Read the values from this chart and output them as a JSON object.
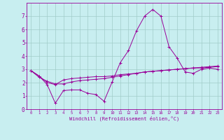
{
  "xlabel": "Windchill (Refroidissement éolien,°C)",
  "xlim": [
    -0.5,
    23.5
  ],
  "ylim": [
    0,
    8
  ],
  "yticks": [
    0,
    1,
    2,
    3,
    4,
    5,
    6,
    7
  ],
  "xticks": [
    0,
    1,
    2,
    3,
    4,
    5,
    6,
    7,
    8,
    9,
    10,
    11,
    12,
    13,
    14,
    15,
    16,
    17,
    18,
    19,
    20,
    21,
    22,
    23
  ],
  "background_color": "#c8eef0",
  "grid_color": "#a0ccc8",
  "line_color": "#990099",
  "line1_x": [
    0,
    1,
    2,
    3,
    4,
    5,
    6,
    7,
    8,
    9,
    10,
    11,
    12,
    13,
    14,
    15,
    16,
    17,
    18,
    19,
    20,
    21,
    22,
    23
  ],
  "line1_y": [
    2.9,
    2.5,
    1.85,
    0.45,
    1.4,
    1.45,
    1.45,
    1.2,
    1.1,
    0.6,
    2.05,
    3.5,
    4.4,
    5.9,
    7.0,
    7.5,
    7.0,
    4.7,
    3.85,
    2.8,
    2.7,
    3.0,
    3.1,
    3.0
  ],
  "line2_x": [
    0,
    1,
    2,
    3,
    4,
    5,
    6,
    7,
    8,
    9,
    10,
    11,
    12,
    13,
    14,
    15,
    16,
    17,
    18,
    19,
    20,
    21,
    22,
    23
  ],
  "line2_y": [
    2.9,
    2.4,
    2.1,
    1.9,
    1.9,
    2.05,
    2.15,
    2.2,
    2.25,
    2.3,
    2.4,
    2.5,
    2.6,
    2.7,
    2.8,
    2.85,
    2.9,
    2.95,
    3.0,
    3.05,
    3.1,
    3.1,
    3.15,
    3.2
  ],
  "line3_x": [
    0,
    1,
    2,
    3,
    4,
    5,
    6,
    7,
    8,
    9,
    10,
    11,
    12,
    13,
    14,
    15,
    16,
    17,
    18,
    19,
    20,
    21,
    22,
    23
  ],
  "line3_y": [
    2.9,
    2.5,
    2.0,
    1.85,
    2.2,
    2.3,
    2.35,
    2.4,
    2.45,
    2.45,
    2.5,
    2.6,
    2.65,
    2.7,
    2.8,
    2.85,
    2.9,
    2.95,
    3.0,
    3.05,
    3.1,
    3.15,
    3.2,
    3.25
  ]
}
